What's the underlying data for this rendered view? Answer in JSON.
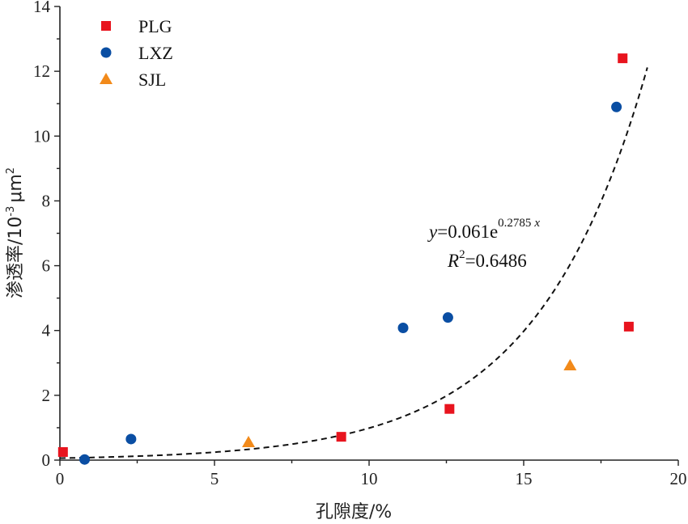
{
  "chart_data": {
    "type": "scatter",
    "xlabel": "孔隙度/%",
    "ylabel_main": "渗透率/10",
    "ylabel_exp": "-3",
    "ylabel_unit": "μm",
    "ylabel_unit_exp": "2",
    "xlim": [
      0,
      20
    ],
    "ylim": [
      0,
      14
    ],
    "x_ticks": [
      "0",
      "5",
      "10",
      "15",
      "20"
    ],
    "y_ticks": [
      "0",
      "2",
      "4",
      "6",
      "8",
      "10",
      "12",
      "14"
    ],
    "grid": false,
    "legend_position": "top-left",
    "series": [
      {
        "name": "PLG",
        "marker": "square",
        "color": "#e8141e",
        "points": [
          [
            0.1,
            0.25
          ],
          [
            9.1,
            0.72
          ],
          [
            12.6,
            1.58
          ],
          [
            18.2,
            12.4
          ],
          [
            18.4,
            4.12
          ]
        ]
      },
      {
        "name": "LXZ",
        "marker": "circle",
        "color": "#0a4ea3",
        "points": [
          [
            0.8,
            0.02
          ],
          [
            2.3,
            0.65
          ],
          [
            11.1,
            4.08
          ],
          [
            12.55,
            4.4
          ],
          [
            18.0,
            10.9
          ]
        ]
      },
      {
        "name": "SJL",
        "marker": "triangle",
        "color": "#f28a1a",
        "points": [
          [
            6.1,
            0.55
          ],
          [
            16.5,
            2.92
          ]
        ]
      }
    ],
    "fit": {
      "a": 0.061,
      "b": 0.2785,
      "x_range": [
        0,
        19
      ],
      "style": "dashed",
      "color": "#111111",
      "eq_y": "y",
      "eq_main": "=0.061e",
      "eq_exp": "0.2785",
      "eq_exp_var": "x",
      "r2_var": "R",
      "r2_exp": "2",
      "r2_value": "=0.6486"
    }
  }
}
